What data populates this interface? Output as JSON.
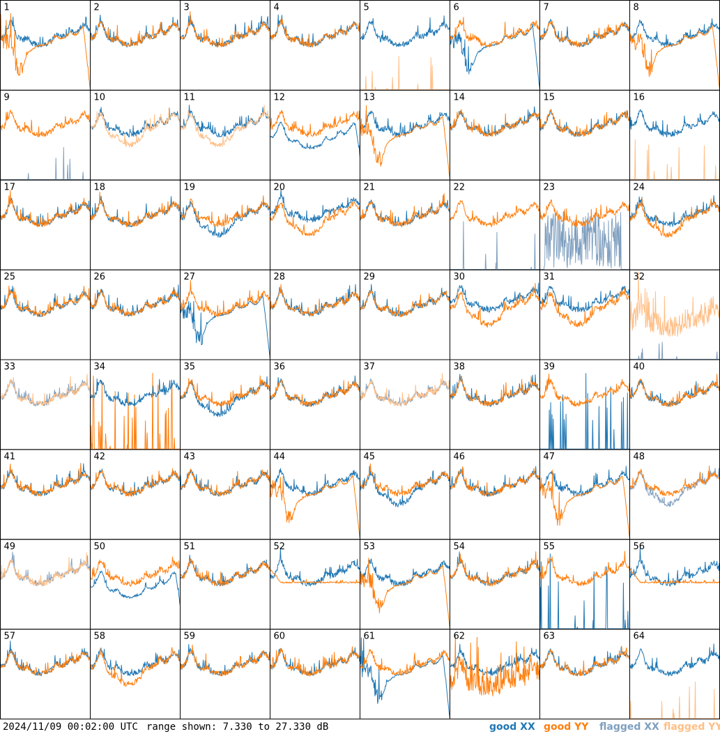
{
  "chart_data": {
    "type": "line",
    "description_of_panels": "8x8 grid of spectra, one per antenna",
    "panels": [
      "1",
      "2",
      "3",
      "4",
      "5",
      "6",
      "7",
      "8",
      "9",
      "10",
      "11",
      "12",
      "13",
      "14",
      "15",
      "16",
      "17",
      "18",
      "19",
      "20",
      "21",
      "22",
      "23",
      "24",
      "25",
      "26",
      "27",
      "28",
      "29",
      "30",
      "31",
      "32",
      "33",
      "34",
      "35",
      "36",
      "37",
      "38",
      "39",
      "40",
      "41",
      "42",
      "43",
      "44",
      "45",
      "46",
      "47",
      "48",
      "49",
      "50",
      "51",
      "52",
      "53",
      "54",
      "55",
      "56",
      "57",
      "58",
      "59",
      "60",
      "61",
      "62",
      "63",
      "64"
    ],
    "ylim": [
      7.33,
      27.33
    ],
    "yunit": "dB",
    "series": [
      {
        "name": "good XX",
        "color": "#1f77b4"
      },
      {
        "name": "good YY",
        "color": "#ff7f0e"
      },
      {
        "name": "flagged XX",
        "color": "#7f9fbf"
      },
      {
        "name": "flagged YY",
        "color": "#ffbf87"
      }
    ],
    "panel_styles": {
      "1": "yy_drop",
      "2": "normal",
      "3": "normal",
      "4": "normal",
      "5": "yy_spikes_flagged",
      "6": "xx_drop",
      "7": "normal",
      "8": "yy_drop",
      "9": "xx_spikes_flagged",
      "10": "yy_flagged_low",
      "11": "yy_flagged_low",
      "12": "xx_low_curve",
      "13": "yy_drop",
      "14": "normal",
      "15": "normal",
      "16": "yy_spikes_flagged",
      "17": "normal",
      "18": "normal",
      "19": "xx_low",
      "20": "xx_high",
      "21": "normal",
      "22": "xx_spikes_flagged",
      "23": "xx_noise_flagged",
      "24": "yy_low",
      "25": "normal",
      "26": "normal",
      "27": "xx_drop",
      "28": "normal",
      "29": "normal",
      "30": "xx_high",
      "31": "xx_high",
      "32": "yy_flagged_noisy",
      "33": "both_flagged",
      "34": "yy_spikes",
      "35": "xx_low",
      "36": "normal",
      "37": "both_flagged",
      "38": "normal",
      "39": "xx_spikes",
      "40": "normal",
      "41": "normal",
      "42": "normal",
      "43": "normal",
      "44": "yy_drop",
      "45": "xx_low",
      "46": "normal",
      "47": "yy_drop",
      "48": "xx_flagged_low",
      "49": "both_flagged",
      "50": "xx_low_curve",
      "51": "normal",
      "52": "yy_flat",
      "53": "yy_drop",
      "54": "normal",
      "55": "xx_spikes",
      "56": "yy_flat",
      "57": "normal",
      "58": "yy_low",
      "59": "normal",
      "60": "normal",
      "61": "xx_drop",
      "62": "yy_low_noisy",
      "63": "normal",
      "64": "yy_spikes_flagged"
    }
  },
  "footer": {
    "timestamp": "2024/11/09 00:02:00 UTC",
    "range": "range shown: 7.330 to 27.330 dB"
  },
  "legend": {
    "good_xx": "good XX",
    "good_yy": "good YY",
    "flagged_xx": "flagged XX",
    "flagged_yy": "flagged YY"
  },
  "colors": {
    "good_xx": "#1f77b4",
    "good_yy": "#ff7f0e",
    "flagged_xx": "#7f9fbf",
    "flagged_yy": "#ffbf87"
  }
}
